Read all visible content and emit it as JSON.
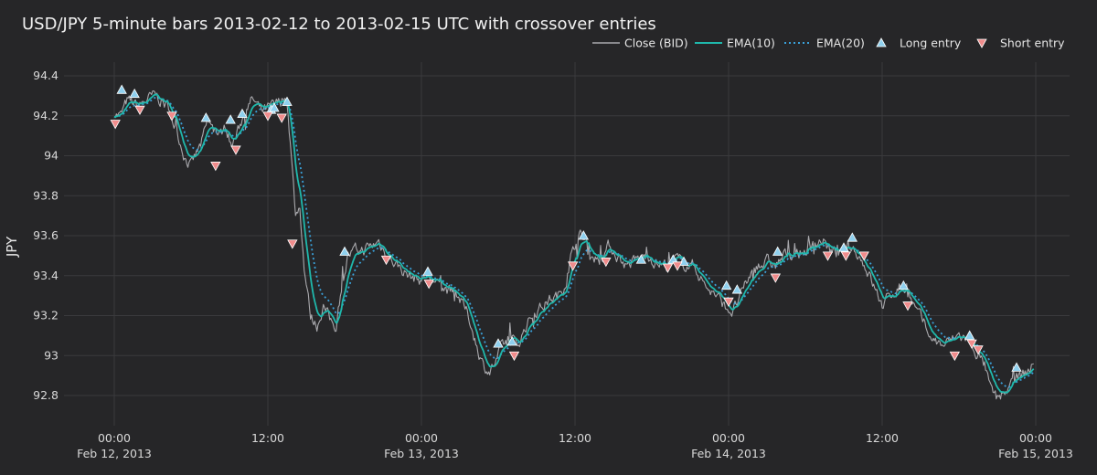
{
  "chart_data": {
    "type": "line",
    "title": "USD/JPY 5-minute bars 2013-02-12 to 2013-02-15 UTC with crossover entries",
    "ylabel": "JPY",
    "xlabel": "",
    "xlim_hours_from": "2013-02-12 00:00",
    "xlim": [
      "2013-02-12 00:00",
      "2013-02-15 00:00"
    ],
    "ylim": [
      92.65,
      94.48
    ],
    "y_ticks": [
      92.8,
      93,
      93.2,
      93.4,
      93.6,
      93.8,
      94,
      94.2,
      94.4
    ],
    "y_tick_labels": [
      "92.8",
      "93",
      "93.2",
      "93.4",
      "93.6",
      "93.8",
      "94",
      "94.2",
      "94.4"
    ],
    "x_ticks": [
      {
        "time": "2013-02-12 00:00",
        "line1": "00:00",
        "line2": "Feb 12, 2013"
      },
      {
        "time": "2013-02-12 12:00",
        "line1": "12:00",
        "line2": ""
      },
      {
        "time": "2013-02-13 00:00",
        "line1": "00:00",
        "line2": "Feb 13, 2013"
      },
      {
        "time": "2013-02-13 12:00",
        "line1": "12:00",
        "line2": ""
      },
      {
        "time": "2013-02-14 00:00",
        "line1": "00:00",
        "line2": "Feb 14, 2013"
      },
      {
        "time": "2013-02-14 12:00",
        "line1": "12:00",
        "line2": ""
      },
      {
        "time": "2013-02-15 00:00",
        "line1": "00:00",
        "line2": "Feb 15, 2013"
      }
    ],
    "grid": true,
    "legend_position": "top-right",
    "colors": {
      "close": "#a9a9ad",
      "ema10": "#1fb8ac",
      "ema20": "#3aa0d8",
      "long": "#8fd0ee",
      "short": "#f08c8c",
      "background": "#262628",
      "grid": "#3a3a3d"
    },
    "series": [
      {
        "name": "Close (BID)",
        "key": "close",
        "style": "solid-thin"
      },
      {
        "name": "EMA(10)",
        "key": "ema10",
        "style": "solid"
      },
      {
        "name": "EMA(20)",
        "key": "ema20",
        "style": "dotted"
      },
      {
        "name": "Long entry",
        "key": "long",
        "style": "triangle-up"
      },
      {
        "name": "Short entry",
        "key": "short",
        "style": "triangle-down"
      }
    ],
    "price_path": [
      [
        "2013-02-12 00:00",
        94.22
      ],
      [
        "2013-02-12 00:30",
        94.2
      ],
      [
        "2013-02-12 01:00",
        94.27
      ],
      [
        "2013-02-12 01:30",
        94.26
      ],
      [
        "2013-02-12 02:00",
        94.25
      ],
      [
        "2013-02-12 02:30",
        94.28
      ],
      [
        "2013-02-12 03:15",
        94.3
      ],
      [
        "2013-02-12 03:45",
        94.27
      ],
      [
        "2013-02-12 04:20",
        94.23
      ],
      [
        "2013-02-12 05:00",
        94.1
      ],
      [
        "2013-02-12 05:30",
        94.0
      ],
      [
        "2013-02-12 06:00",
        93.95
      ],
      [
        "2013-02-12 06:45",
        94.05
      ],
      [
        "2013-02-12 07:20",
        94.17
      ],
      [
        "2013-02-12 07:50",
        94.12
      ],
      [
        "2013-02-12 08:15",
        94.1
      ],
      [
        "2013-02-12 08:45",
        94.15
      ],
      [
        "2013-02-12 09:10",
        94.05
      ],
      [
        "2013-02-12 09:40",
        94.12
      ],
      [
        "2013-02-12 10:20",
        94.25
      ],
      [
        "2013-02-12 10:50",
        94.28
      ],
      [
        "2013-02-12 11:30",
        94.22
      ],
      [
        "2013-02-12 12:15",
        94.24
      ],
      [
        "2013-02-12 13:00",
        94.27
      ],
      [
        "2013-02-12 13:30",
        94.29
      ],
      [
        "2013-02-12 13:50",
        94.0
      ],
      [
        "2013-02-12 14:10",
        93.7
      ],
      [
        "2013-02-12 14:30",
        93.75
      ],
      [
        "2013-02-12 14:50",
        93.45
      ],
      [
        "2013-02-12 15:20",
        93.2
      ],
      [
        "2013-02-12 15:50",
        93.15
      ],
      [
        "2013-02-12 16:20",
        93.25
      ],
      [
        "2013-02-12 16:50",
        93.18
      ],
      [
        "2013-02-12 17:20",
        93.15
      ],
      [
        "2013-02-12 17:50",
        93.35
      ],
      [
        "2013-02-12 18:15",
        93.5
      ],
      [
        "2013-02-12 18:50",
        93.52
      ],
      [
        "2013-02-12 19:30",
        93.53
      ],
      [
        "2013-02-12 20:10",
        93.55
      ],
      [
        "2013-02-12 20:40",
        93.57
      ],
      [
        "2013-02-12 21:20",
        93.5
      ],
      [
        "2013-02-12 22:10",
        93.45
      ],
      [
        "2013-02-12 23:00",
        93.4
      ],
      [
        "2013-02-12 23:50",
        93.38
      ],
      [
        "2013-02-13 00:30",
        93.4
      ],
      [
        "2013-02-13 01:15",
        93.35
      ],
      [
        "2013-02-13 02:00",
        93.33
      ],
      [
        "2013-02-13 02:50",
        93.3
      ],
      [
        "2013-02-13 03:40",
        93.2
      ],
      [
        "2013-02-13 04:20",
        93.05
      ],
      [
        "2013-02-13 04:50",
        92.95
      ],
      [
        "2013-02-13 05:20",
        92.92
      ],
      [
        "2013-02-13 05:50",
        92.97
      ],
      [
        "2013-02-13 06:20",
        93.05
      ],
      [
        "2013-02-13 06:50",
        93.08
      ],
      [
        "2013-02-13 07:30",
        93.05
      ],
      [
        "2013-02-13 08:10",
        93.15
      ],
      [
        "2013-02-13 08:50",
        93.22
      ],
      [
        "2013-02-13 09:30",
        93.25
      ],
      [
        "2013-02-13 10:00",
        93.28
      ],
      [
        "2013-02-13 10:45",
        93.3
      ],
      [
        "2013-02-13 11:20",
        93.38
      ],
      [
        "2013-02-13 11:50",
        93.55
      ],
      [
        "2013-02-13 12:20",
        93.6
      ],
      [
        "2013-02-13 12:50",
        93.58
      ],
      [
        "2013-02-13 13:20",
        93.5
      ],
      [
        "2013-02-13 14:00",
        93.48
      ],
      [
        "2013-02-13 14:40",
        93.55
      ],
      [
        "2013-02-13 15:20",
        93.5
      ],
      [
        "2013-02-13 16:00",
        93.45
      ],
      [
        "2013-02-13 16:50",
        93.48
      ],
      [
        "2013-02-13 17:40",
        93.5
      ],
      [
        "2013-02-13 18:30",
        93.46
      ],
      [
        "2013-02-13 19:10",
        93.45
      ],
      [
        "2013-02-13 19:50",
        93.48
      ],
      [
        "2013-02-13 20:30",
        93.46
      ],
      [
        "2013-02-13 21:20",
        93.45
      ],
      [
        "2013-02-13 22:10",
        93.35
      ],
      [
        "2013-02-13 23:00",
        93.3
      ],
      [
        "2013-02-13 23:40",
        93.25
      ],
      [
        "2013-02-14 00:20",
        93.22
      ],
      [
        "2013-02-14 01:00",
        93.3
      ],
      [
        "2013-02-14 01:40",
        93.4
      ],
      [
        "2013-02-14 02:20",
        93.45
      ],
      [
        "2013-02-14 03:00",
        93.47
      ],
      [
        "2013-02-14 03:40",
        93.45
      ],
      [
        "2013-02-14 04:20",
        93.5
      ],
      [
        "2013-02-14 05:00",
        93.5
      ],
      [
        "2013-02-14 05:50",
        93.52
      ],
      [
        "2013-02-14 06:40",
        93.55
      ],
      [
        "2013-02-14 07:20",
        93.58
      ],
      [
        "2013-02-14 08:00",
        93.52
      ],
      [
        "2013-02-14 08:40",
        93.5
      ],
      [
        "2013-02-14 09:20",
        93.55
      ],
      [
        "2013-02-14 10:00",
        93.52
      ],
      [
        "2013-02-14 10:40",
        93.45
      ],
      [
        "2013-02-14 11:20",
        93.35
      ],
      [
        "2013-02-14 12:00",
        93.25
      ],
      [
        "2013-02-14 12:40",
        93.3
      ],
      [
        "2013-02-14 13:20",
        93.35
      ],
      [
        "2013-02-14 14:00",
        93.32
      ],
      [
        "2013-02-14 14:40",
        93.22
      ],
      [
        "2013-02-14 15:20",
        93.15
      ],
      [
        "2013-02-14 16:00",
        93.08
      ],
      [
        "2013-02-14 16:40",
        93.05
      ],
      [
        "2013-02-14 17:20",
        93.07
      ],
      [
        "2013-02-14 18:00",
        93.1
      ],
      [
        "2013-02-14 18:40",
        93.08
      ],
      [
        "2013-02-14 19:20",
        93.02
      ],
      [
        "2013-02-14 20:00",
        92.95
      ],
      [
        "2013-02-14 20:30",
        92.82
      ],
      [
        "2013-02-14 21:00",
        92.78
      ],
      [
        "2013-02-14 21:40",
        92.82
      ],
      [
        "2013-02-14 22:20",
        92.88
      ],
      [
        "2013-02-14 23:00",
        92.9
      ],
      [
        "2013-02-14 23:50",
        92.95
      ]
    ],
    "long_entries": [
      [
        "2013-02-12 00:35",
        94.33
      ],
      [
        "2013-02-12 01:35",
        94.31
      ],
      [
        "2013-02-12 07:10",
        94.19
      ],
      [
        "2013-02-12 09:05",
        94.18
      ],
      [
        "2013-02-12 10:00",
        94.21
      ],
      [
        "2013-02-12 12:15",
        94.23
      ],
      [
        "2013-02-12 12:30",
        94.24
      ],
      [
        "2013-02-12 13:30",
        94.27
      ],
      [
        "2013-02-12 18:00",
        93.52
      ],
      [
        "2013-02-13 00:30",
        93.42
      ],
      [
        "2013-02-13 06:00",
        93.06
      ],
      [
        "2013-02-13 07:05",
        93.07
      ],
      [
        "2013-02-13 12:40",
        93.6
      ],
      [
        "2013-02-13 17:10",
        93.48
      ],
      [
        "2013-02-13 19:40",
        93.48
      ],
      [
        "2013-02-13 20:30",
        93.47
      ],
      [
        "2013-02-13 23:50",
        93.35
      ],
      [
        "2013-02-14 00:40",
        93.33
      ],
      [
        "2013-02-14 03:50",
        93.52
      ],
      [
        "2013-02-14 09:00",
        93.54
      ],
      [
        "2013-02-14 09:40",
        93.59
      ],
      [
        "2013-02-14 13:40",
        93.35
      ],
      [
        "2013-02-14 18:50",
        93.1
      ],
      [
        "2013-02-14 22:30",
        92.94
      ]
    ],
    "short_entries": [
      [
        "2013-02-12 00:05",
        94.16
      ],
      [
        "2013-02-12 02:00",
        94.23
      ],
      [
        "2013-02-12 04:30",
        94.2
      ],
      [
        "2013-02-12 07:55",
        93.95
      ],
      [
        "2013-02-12 09:30",
        94.03
      ],
      [
        "2013-02-12 12:00",
        94.2
      ],
      [
        "2013-02-12 13:05",
        94.19
      ],
      [
        "2013-02-12 13:55",
        93.56
      ],
      [
        "2013-02-12 21:15",
        93.48
      ],
      [
        "2013-02-13 00:35",
        93.36
      ],
      [
        "2013-02-13 07:15",
        93.0
      ],
      [
        "2013-02-13 11:50",
        93.45
      ],
      [
        "2013-02-13 14:25",
        93.47
      ],
      [
        "2013-02-13 19:15",
        93.44
      ],
      [
        "2013-02-13 20:00",
        93.45
      ],
      [
        "2013-02-14 00:00",
        93.27
      ],
      [
        "2013-02-14 03:40",
        93.39
      ],
      [
        "2013-02-14 07:45",
        93.5
      ],
      [
        "2013-02-14 09:10",
        93.5
      ],
      [
        "2013-02-14 10:35",
        93.5
      ],
      [
        "2013-02-14 14:00",
        93.25
      ],
      [
        "2013-02-14 17:40",
        93.0
      ],
      [
        "2013-02-14 19:00",
        93.06
      ],
      [
        "2013-02-14 19:30",
        93.03
      ]
    ]
  }
}
